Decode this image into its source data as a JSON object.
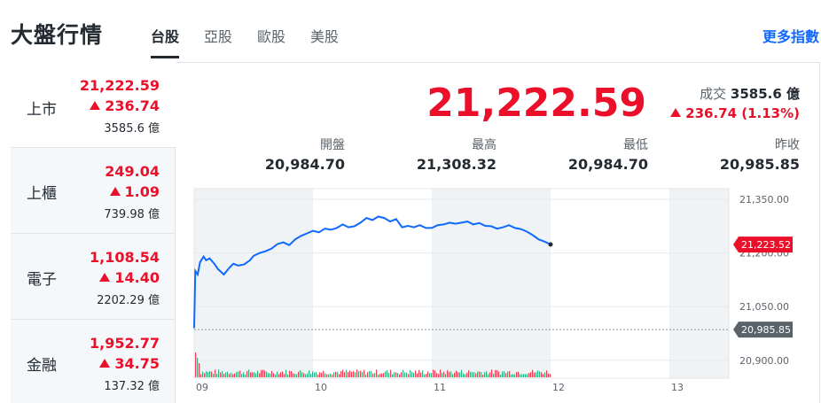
{
  "header": {
    "title": "大盤行情",
    "tabs": [
      {
        "label": "台股",
        "active": true
      },
      {
        "label": "亞股",
        "active": false
      },
      {
        "label": "歐股",
        "active": false
      },
      {
        "label": "美股",
        "active": false
      }
    ],
    "more_link": "更多指數"
  },
  "sidebar": {
    "items": [
      {
        "name": "上市",
        "price": "21,222.59",
        "change": "236.74",
        "volume": "3585.6 億"
      },
      {
        "name": "上櫃",
        "price": "249.04",
        "change": "1.09",
        "volume": "739.98 億"
      },
      {
        "name": "電子",
        "price": "1,108.54",
        "change": "14.40",
        "volume": "2202.29 億"
      },
      {
        "name": "金融",
        "price": "1,952.77",
        "change": "34.75",
        "volume": "137.32 億"
      }
    ]
  },
  "main": {
    "price": "21,222.59",
    "turnover_label": "成交",
    "turnover_value": "3585.6 億",
    "change_text": "236.74 (1.13%)",
    "stats": [
      {
        "label": "開盤",
        "value": "20,984.70"
      },
      {
        "label": "最高",
        "value": "21,308.32"
      },
      {
        "label": "最低",
        "value": "20,984.70"
      },
      {
        "label": "昨收",
        "value": "20,985.85"
      }
    ]
  },
  "colors": {
    "up": "#eb0f29",
    "line": "#0f69ff",
    "link": "#0f69ff",
    "marker_current": "#eb0f29",
    "marker_prev": "#5b636a"
  },
  "chart_data": {
    "type": "line",
    "x_ticks": [
      "09",
      "10",
      "11",
      "12",
      "13"
    ],
    "y_ticks": [
      "21,350.00",
      "21,200.00",
      "21,050.00",
      "20,900.00"
    ],
    "ylim": [
      20850,
      21380
    ],
    "current_label": "21,223.52",
    "prev_close_label": "20,985.85",
    "prev_close": 20985.85,
    "current": 21223.52,
    "series": [
      {
        "x": [
          9.0,
          9.01,
          9.03,
          9.05,
          9.08,
          9.1,
          9.13,
          9.17,
          9.2,
          9.25,
          9.3,
          9.33,
          9.37,
          9.42,
          9.47,
          9.5,
          9.55,
          9.6,
          9.65,
          9.7,
          9.75,
          9.8,
          9.85,
          9.9,
          9.95,
          10.0,
          10.05,
          10.1,
          10.15,
          10.2,
          10.25,
          10.3,
          10.35,
          10.4,
          10.45,
          10.5,
          10.55,
          10.6,
          10.65,
          10.7,
          10.75,
          10.8,
          10.85,
          10.9,
          10.95,
          11.0,
          11.05,
          11.1,
          11.15,
          11.2,
          11.25,
          11.3,
          11.35,
          11.4,
          11.45,
          11.5,
          11.55,
          11.6,
          11.65,
          11.7,
          11.75,
          11.8,
          11.85,
          11.9,
          11.95,
          12.0
        ],
        "y": [
          20990,
          21150,
          21140,
          21175,
          21190,
          21180,
          21185,
          21170,
          21155,
          21140,
          21160,
          21170,
          21165,
          21168,
          21180,
          21192,
          21200,
          21205,
          21212,
          21225,
          21230,
          21222,
          21238,
          21248,
          21255,
          21262,
          21258,
          21268,
          21265,
          21270,
          21280,
          21272,
          21275,
          21285,
          21298,
          21292,
          21302,
          21298,
          21288,
          21295,
          21272,
          21276,
          21272,
          21278,
          21270,
          21270,
          21278,
          21280,
          21285,
          21282,
          21285,
          21288,
          21280,
          21284,
          21276,
          21275,
          21268,
          21272,
          21278,
          21270,
          21267,
          21260,
          21250,
          21238,
          21232,
          21224
        ]
      }
    ]
  }
}
